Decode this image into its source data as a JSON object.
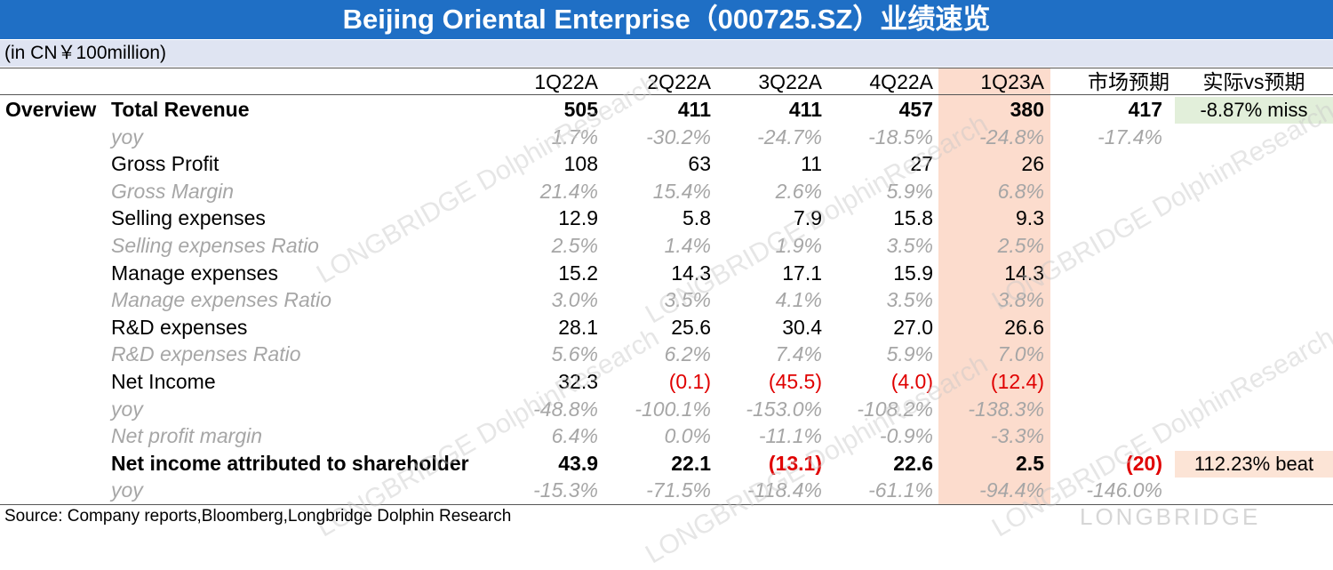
{
  "title": "Beijing Oriental Enterprise（000725.SZ）业绩速览",
  "unit_note": "(in CN￥100million)",
  "section": "Overview",
  "headers": [
    "1Q22A",
    "2Q22A",
    "3Q22A",
    "4Q22A",
    "1Q23A",
    "市场预期",
    "实际vs预期"
  ],
  "rows": [
    {
      "label": "Total Revenue",
      "style": "bold",
      "values": [
        "505",
        "411",
        "411",
        "457",
        "380"
      ],
      "expect": "417",
      "vs": "-8.87% miss",
      "vs_kind": "miss"
    },
    {
      "label": "yoy",
      "style": "muted",
      "values": [
        "1.7%",
        "-30.2%",
        "-24.7%",
        "-18.5%",
        "-24.8%"
      ],
      "expect": "-17.4%"
    },
    {
      "label": "Gross Profit",
      "style": "normal",
      "values": [
        "108",
        "63",
        "11",
        "27",
        "26"
      ]
    },
    {
      "label": "Gross Margin",
      "style": "muted",
      "values": [
        "21.4%",
        "15.4%",
        "2.6%",
        "5.9%",
        "6.8%"
      ]
    },
    {
      "label": "Selling expenses",
      "style": "normal",
      "values": [
        "12.9",
        "5.8",
        "7.9",
        "15.8",
        "9.3"
      ]
    },
    {
      "label": "Selling expenses Ratio",
      "style": "muted",
      "values": [
        "2.5%",
        "1.4%",
        "1.9%",
        "3.5%",
        "2.5%"
      ]
    },
    {
      "label": "Manage expenses",
      "style": "normal",
      "values": [
        "15.2",
        "14.3",
        "17.1",
        "15.9",
        "14.3"
      ]
    },
    {
      "label": "Manage expenses Ratio",
      "style": "muted",
      "values": [
        "3.0%",
        "3.5%",
        "4.1%",
        "3.5%",
        "3.8%"
      ]
    },
    {
      "label": "R&D expenses",
      "style": "normal",
      "values": [
        "28.1",
        "25.6",
        "30.4",
        "27.0",
        "26.6"
      ]
    },
    {
      "label": "R&D expenses Ratio",
      "style": "muted",
      "values": [
        "5.6%",
        "6.2%",
        "7.4%",
        "5.9%",
        "7.0%"
      ]
    },
    {
      "label": "Net Income",
      "style": "normal",
      "values": [
        "32.3",
        "(0.1)",
        "(45.5)",
        "(4.0)",
        "(12.4)"
      ]
    },
    {
      "label": "yoy",
      "style": "muted",
      "values": [
        "-48.8%",
        "-100.1%",
        "-153.0%",
        "-108.2%",
        "-138.3%"
      ]
    },
    {
      "label": "Net profit margin",
      "style": "muted",
      "values": [
        "6.4%",
        "0.0%",
        "-11.1%",
        "-0.9%",
        "-3.3%"
      ]
    },
    {
      "label": "Net income attributed to shareholder",
      "style": "bold",
      "values": [
        "43.9",
        "22.1",
        "(13.1)",
        "22.6",
        "2.5"
      ],
      "expect": "(20)",
      "vs": "112.23% beat",
      "vs_kind": "beat"
    },
    {
      "label": "yoy",
      "style": "muted",
      "values": [
        "-15.3%",
        "-71.5%",
        "-118.4%",
        "-61.1%",
        "-94.4%"
      ],
      "expect": "-146.0%"
    }
  ],
  "source": "Source: Company reports,Bloomberg,Longbridge Dolphin Research",
  "watermark_text": "LONGBRIDGE DolphinResearch",
  "footer_logo": "LONGBRIDGE",
  "colors": {
    "title_bg": "#1f6fc5",
    "unit_bg": "#dfe4f2",
    "highlight": "#fcdccd",
    "miss_bg": "#e2efda",
    "beat_bg": "#fce4d6",
    "negative": "#e00000",
    "muted": "#a6a6a6"
  }
}
